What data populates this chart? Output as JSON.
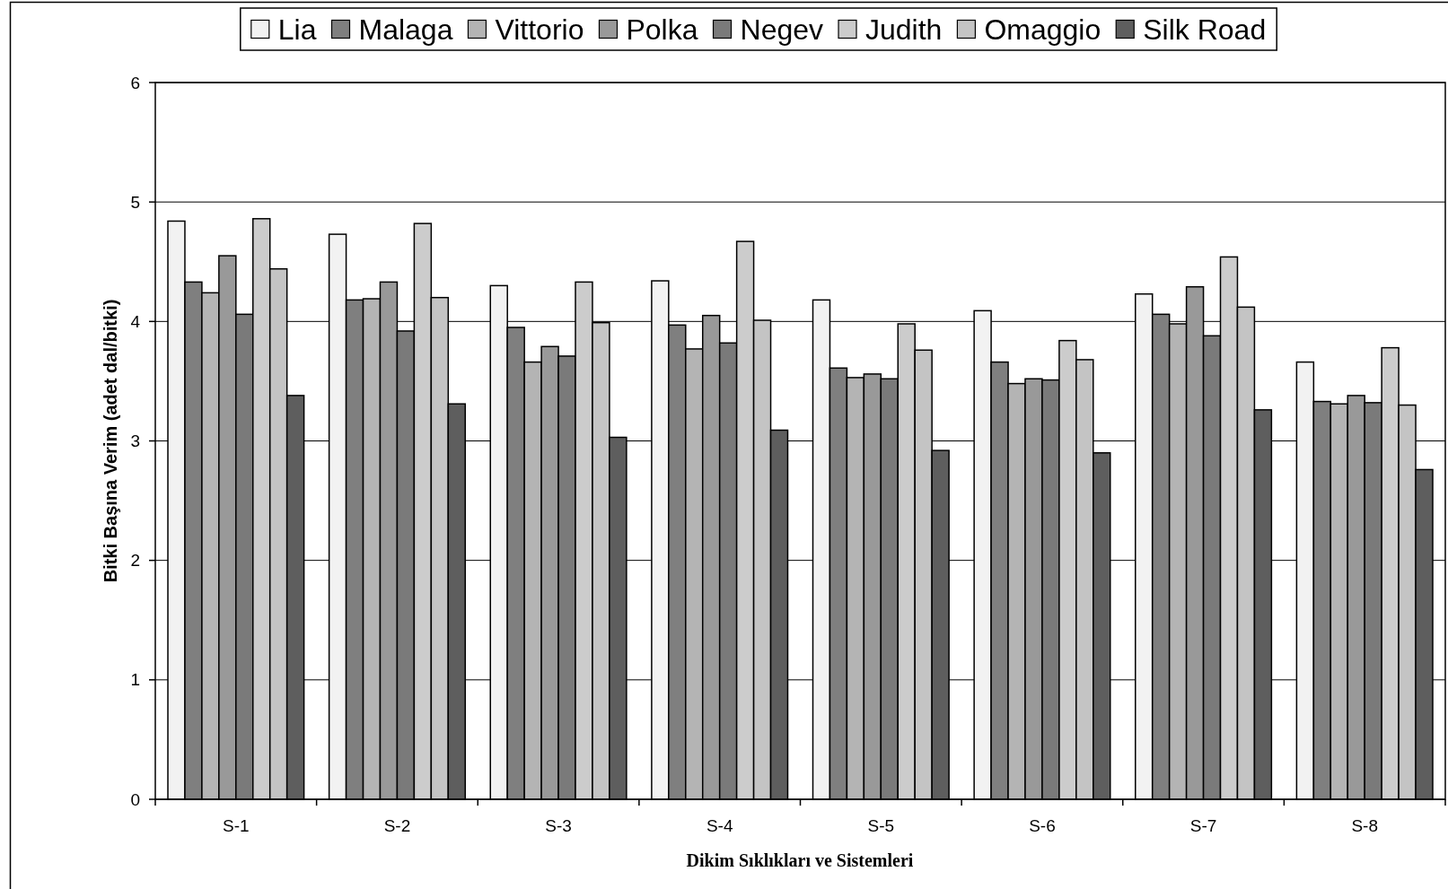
{
  "chart_data": {
    "type": "bar",
    "xlabel": "Dikim Sıklıkları ve Sistemleri",
    "ylabel": "Bitki Başına Verim (adet dal/bitki)",
    "categories": [
      "S-1",
      "S-2",
      "S-3",
      "S-4",
      "S-5",
      "S-6",
      "S-7",
      "S-8"
    ],
    "series": [
      {
        "name": "Lia",
        "color": "#f2f2f2",
        "values": [
          4.84,
          4.73,
          4.3,
          4.34,
          4.18,
          4.09,
          4.23,
          3.66
        ]
      },
      {
        "name": "Malaga",
        "color": "#7f7f7f",
        "values": [
          4.33,
          4.18,
          3.95,
          3.97,
          3.61,
          3.66,
          4.06,
          3.33
        ]
      },
      {
        "name": "Vittorio",
        "color": "#b4b4b4",
        "values": [
          4.24,
          4.19,
          3.66,
          3.77,
          3.53,
          3.48,
          3.98,
          3.31
        ]
      },
      {
        "name": "Polka",
        "color": "#999999",
        "values": [
          4.55,
          4.33,
          3.79,
          4.05,
          3.56,
          3.52,
          4.29,
          3.38
        ]
      },
      {
        "name": "Negev",
        "color": "#7a7a7a",
        "values": [
          4.06,
          3.92,
          3.71,
          3.82,
          3.52,
          3.51,
          3.88,
          3.32
        ]
      },
      {
        "name": "Judith",
        "color": "#cccccc",
        "values": [
          4.86,
          4.82,
          4.33,
          4.67,
          3.98,
          3.84,
          4.54,
          3.78
        ]
      },
      {
        "name": "Omaggio",
        "color": "#c4c4c4",
        "values": [
          4.44,
          4.2,
          3.99,
          4.01,
          3.76,
          3.68,
          4.12,
          3.3
        ]
      },
      {
        "name": "Silk Road",
        "color": "#5e5e5e",
        "values": [
          3.38,
          3.31,
          3.03,
          3.09,
          2.92,
          2.9,
          3.26,
          2.76
        ]
      }
    ],
    "ylim": [
      0,
      6
    ],
    "yticks": [
      0,
      1,
      2,
      3,
      4,
      5,
      6
    ],
    "grid": "y",
    "legend": "top"
  }
}
